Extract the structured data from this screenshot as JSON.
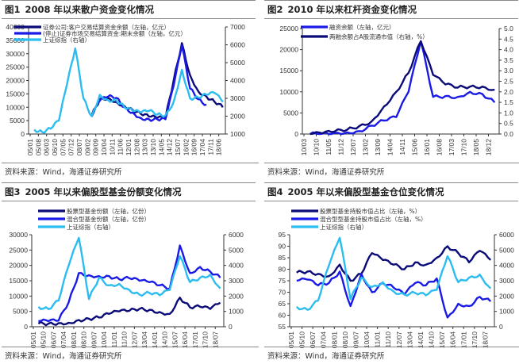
{
  "colors": {
    "navy": "#0a0a78",
    "blue": "#1a1ae6",
    "cyan": "#2bbcf0"
  },
  "source_text": "资料来源：Wind，海通证券研究所",
  "chart_data": [
    {
      "type": "line",
      "fig": "图1",
      "title": "2008 年以来散户资金变化情况",
      "y_left": {
        "range": [
          0,
          40000
        ],
        "ticks": [
          "0",
          "5000",
          "10000",
          "15000",
          "20000",
          "25000",
          "30000",
          "35000",
          "40000"
        ]
      },
      "y_right": {
        "range": [
          1000,
          7000
        ],
        "ticks": [
          "1000",
          "2000",
          "3000",
          "4000",
          "5000",
          "6000",
          "7000"
        ]
      },
      "x_ticks": [
        "05/01",
        "05/08",
        "06/03",
        "06/10",
        "07/05",
        "07/12",
        "08/07",
        "09/02",
        "09/09",
        "10/04",
        "10/11",
        "11/06",
        "12/01",
        "12/08",
        "13/03",
        "13/10",
        "14/05",
        "14/12",
        "15/07",
        "16/02",
        "16/09",
        "17/04",
        "17/11",
        "18/06"
      ],
      "series": [
        {
          "name": "证券公司:客户交易结算资金余额（左轴，亿元）",
          "color": "navy",
          "axis": "left",
          "start": 7.0,
          "values": [
            null,
            null,
            null,
            null,
            null,
            null,
            null,
            7000,
            13000,
            13500,
            12000,
            10500,
            9000,
            7500,
            6500,
            6000,
            6000,
            20000,
            34000,
            22000,
            16000,
            14000,
            12000,
            10000
          ]
        },
        {
          "name": "(停止)证券市场交易结算资金:期末余额（左轴，亿元）",
          "color": "blue",
          "axis": "left",
          "start": 7.0,
          "values": [
            null,
            null,
            null,
            null,
            null,
            null,
            null,
            6500,
            12500,
            14000,
            13500,
            10000,
            8000,
            6000,
            5500,
            5500,
            5500,
            18000,
            33000,
            17000,
            13000,
            11000,
            null,
            null
          ]
        },
        {
          "name": "上证综指（右轴）",
          "color": "cyan",
          "axis": "right",
          "start": 0,
          "values": [
            1250,
            1100,
            1300,
            1750,
            3800,
            5800,
            3000,
            2000,
            3200,
            2900,
            2900,
            2500,
            2300,
            2200,
            2300,
            2100,
            2050,
            2800,
            4600,
            3000,
            3050,
            3200,
            3300,
            2800
          ]
        }
      ]
    },
    {
      "type": "line",
      "fig": "图2",
      "title": "2010 年以来杠杆资金变化情况",
      "y_left": {
        "range": [
          0,
          25000
        ],
        "ticks": [
          "0",
          "5000",
          "10000",
          "15000",
          "20000",
          "25000"
        ]
      },
      "y_right": {
        "range": [
          0,
          5.0
        ],
        "ticks": [
          "0.0",
          "0.5",
          "1.0",
          "1.5",
          "2.0",
          "2.5",
          "3.0",
          "3.5",
          "4.0",
          "4.5",
          "5.0"
        ]
      },
      "x_ticks": [
        "10/03",
        "10/10",
        "11/05",
        "11/12",
        "12/07",
        "13/02",
        "13/09",
        "14/04",
        "14/11",
        "15/06",
        "16/01",
        "16/08",
        "17/03",
        "17/10",
        "18/05",
        "18/12"
      ],
      "series": [
        {
          "name": "融资余额（左轴，亿元）",
          "color": "blue",
          "axis": "left",
          "start": 0,
          "values": [
            0,
            100,
            300,
            400,
            700,
            2000,
            3200,
            4000,
            10000,
            22000,
            8800,
            9000,
            8800,
            10000,
            9500,
            7500
          ]
        },
        {
          "name": "两融余额占A股流通市值（右轴，%）",
          "color": "navy",
          "axis": "right",
          "start": 0,
          "values": [
            0,
            0.03,
            0.12,
            0.2,
            0.38,
            0.6,
            1.3,
            2.0,
            2.9,
            4.4,
            2.8,
            2.35,
            2.2,
            2.25,
            2.25,
            2.1
          ]
        }
      ]
    },
    {
      "type": "line",
      "fig": "图3",
      "title": "2005 年以来偏股型基金份额变化情况",
      "y_left": {
        "range": [
          0,
          30000
        ],
        "ticks": [
          "0",
          "5000",
          "10000",
          "15000",
          "20000",
          "25000",
          "30000"
        ]
      },
      "y_right": {
        "range": [
          0,
          6000
        ],
        "ticks": [
          "0",
          "1000",
          "2000",
          "3000",
          "4000",
          "5000",
          "6000"
        ]
      },
      "x_ticks": [
        "05/01",
        "05/10",
        "06/07",
        "07/04",
        "08/01",
        "08/10",
        "09/07",
        "10/04",
        "11/01",
        "11/10",
        "12/07",
        "13/04",
        "14/01",
        "14/10",
        "15/07",
        "16/04",
        "17/01",
        "17/10",
        "18/07"
      ],
      "series": [
        {
          "name": "股票型基金份额（左轴，亿份）",
          "color": "navy",
          "axis": "left",
          "start": 0,
          "values": [
            1000,
            1000,
            1200,
            1300,
            2200,
            2600,
            3000,
            4200,
            5000,
            5200,
            5800,
            5500,
            4800,
            4200,
            9500,
            6300,
            6500,
            5800,
            7800
          ]
        },
        {
          "name": "混合型基金份额（左轴，亿份）",
          "color": "blue",
          "axis": "left",
          "start": 0,
          "values": [
            1800,
            1800,
            2000,
            8000,
            17500,
            16800,
            16500,
            16500,
            15500,
            15800,
            15000,
            14500,
            13500,
            12500,
            26500,
            17500,
            19500,
            18000,
            16000
          ]
        },
        {
          "name": "上证综指（右轴）",
          "color": "cyan",
          "axis": "right",
          "start": 0,
          "values": [
            1300,
            1150,
            1700,
            4000,
            5800,
            1800,
            3200,
            2700,
            2800,
            2400,
            2100,
            2200,
            2050,
            2400,
            4600,
            2900,
            3200,
            3400,
            2500
          ]
        }
      ]
    },
    {
      "type": "line",
      "fig": "图4",
      "title": "2005 年以来偏股型基金仓位变化情况",
      "y_left": {
        "range": [
          55,
          95
        ],
        "ticks": [
          "55",
          "60",
          "65",
          "70",
          "75",
          "80",
          "85",
          "90",
          "95"
        ]
      },
      "y_right": {
        "range": [
          0,
          6000
        ],
        "ticks": [
          "0",
          "1000",
          "2000",
          "3000",
          "4000",
          "5000",
          "6000"
        ]
      },
      "x_ticks": [
        "05/01",
        "05/10",
        "06/07",
        "07/04",
        "08/01",
        "08/10",
        "09/07",
        "10/04",
        "11/01",
        "11/10",
        "12/07",
        "13/04",
        "14/01",
        "14/10",
        "15/07",
        "16/04",
        "17/01",
        "17/10",
        "18/07"
      ],
      "series": [
        {
          "name": "股票型基金持股市值占比（左轴，%）",
          "color": "navy",
          "axis": "left",
          "start": 0,
          "values": [
            78.5,
            79,
            78,
            77,
            82,
            75,
            78,
            87,
            84,
            82,
            80,
            83,
            82,
            85,
            90,
            87,
            83,
            88,
            84
          ]
        },
        {
          "name": "混合型型基金持股市值占比（左轴，%）",
          "color": "blue",
          "axis": "left",
          "start": 0,
          "values": [
            75,
            75.5,
            73,
            74,
            79,
            64,
            78,
            70,
            74,
            72,
            69,
            74,
            73,
            76,
            59,
            65,
            64,
            68,
            66
          ]
        },
        {
          "name": "上证综指（右轴）",
          "color": "cyan",
          "axis": "right",
          "start": 0,
          "values": [
            1300,
            1100,
            1700,
            4000,
            5800,
            1800,
            3200,
            2600,
            2900,
            2300,
            2100,
            2200,
            2050,
            2400,
            4600,
            2900,
            3200,
            3400,
            2500
          ]
        }
      ]
    }
  ]
}
